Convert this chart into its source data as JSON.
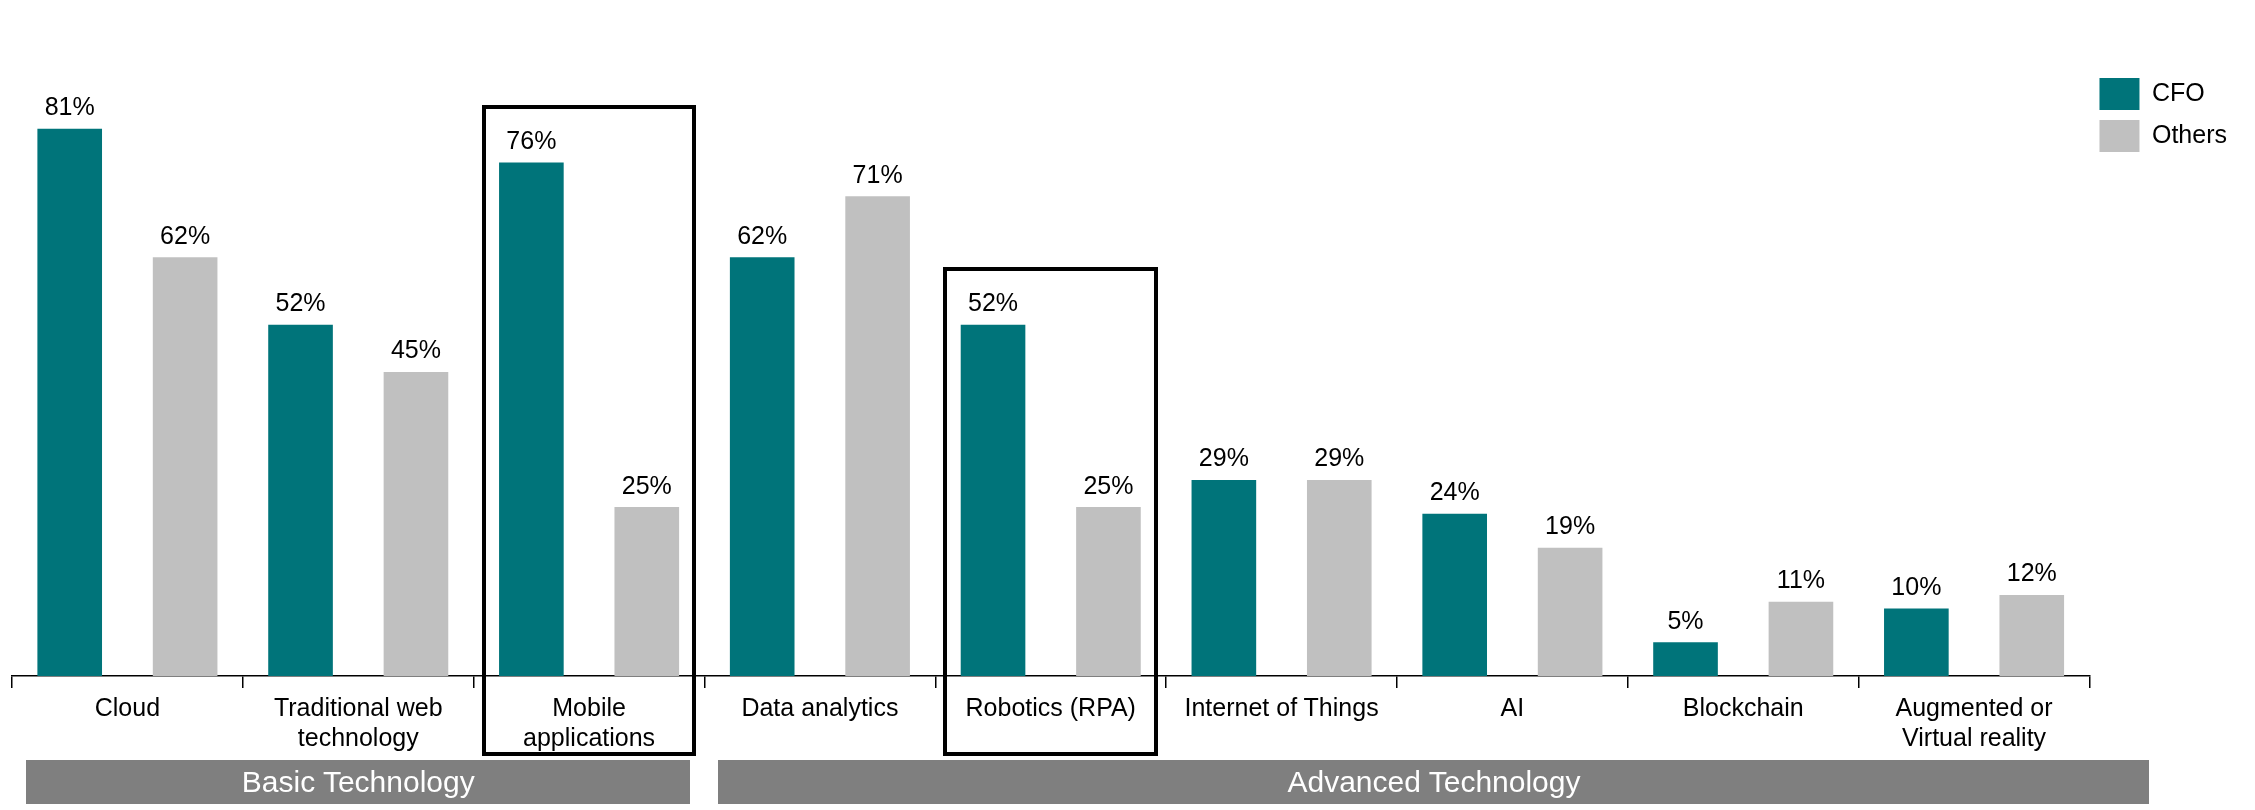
{
  "chart_data": {
    "type": "bar",
    "categories": [
      "Cloud",
      "Traditional web technology",
      "Mobile applications",
      "Data analytics",
      "Robotics (RPA)",
      "Internet of Things",
      "AI",
      "Blockchain",
      "Augmented or Virtual reality"
    ],
    "series": [
      {
        "name": "CFO",
        "color": "#00747a",
        "values": [
          81,
          52,
          76,
          62,
          52,
          29,
          24,
          5,
          10
        ],
        "value_labels": [
          "81%",
          "52%",
          "76%",
          "62%",
          "52%",
          "29%",
          "24%",
          "5%",
          "10%"
        ]
      },
      {
        "name": "Others",
        "color": "#c0c0c0",
        "values": [
          62,
          45,
          25,
          71,
          25,
          29,
          19,
          11,
          12
        ],
        "value_labels": [
          "62%",
          "45%",
          "25%",
          "71%",
          "25%",
          "29%",
          "19%",
          "11%",
          "12%"
        ]
      }
    ],
    "legend": "right",
    "grid": false,
    "annotations": [
      "Basic Technology",
      "Advanced Technology"
    ]
  }
}
